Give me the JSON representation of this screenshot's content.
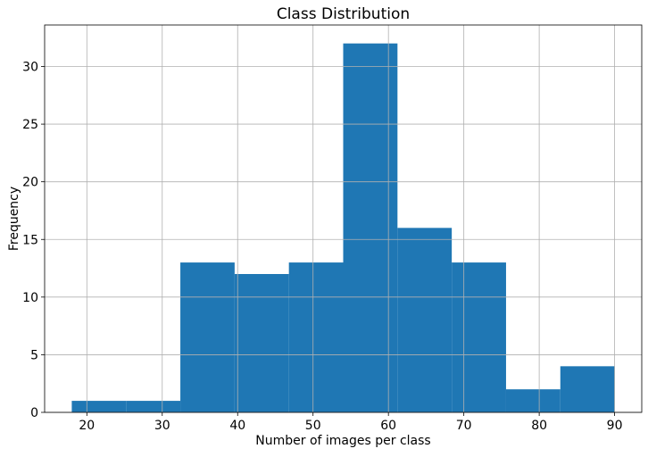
{
  "chart_data": {
    "type": "bar",
    "title": "Class Distribution",
    "xlabel": "Number of images per class",
    "ylabel": "Frequency",
    "grid": true,
    "bar_color": "#1f77b4",
    "grid_color": "#b0b0b0",
    "xlim": [
      14.4,
      93.6
    ],
    "ylim": [
      0,
      33.6
    ],
    "xticks": [
      20,
      30,
      40,
      50,
      60,
      70,
      80,
      90
    ],
    "yticks": [
      0,
      5,
      10,
      15,
      20,
      25,
      30
    ],
    "bins": [
      {
        "x0": 18.0,
        "x1": 25.2,
        "count": 1
      },
      {
        "x0": 25.2,
        "x1": 32.4,
        "count": 1
      },
      {
        "x0": 32.4,
        "x1": 39.6,
        "count": 13
      },
      {
        "x0": 39.6,
        "x1": 46.8,
        "count": 12
      },
      {
        "x0": 46.8,
        "x1": 54.0,
        "count": 13
      },
      {
        "x0": 54.0,
        "x1": 61.2,
        "count": 32
      },
      {
        "x0": 61.2,
        "x1": 68.4,
        "count": 16
      },
      {
        "x0": 68.4,
        "x1": 75.6,
        "count": 13
      },
      {
        "x0": 75.6,
        "x1": 82.8,
        "count": 2
      },
      {
        "x0": 82.8,
        "x1": 90.0,
        "count": 4
      }
    ]
  }
}
